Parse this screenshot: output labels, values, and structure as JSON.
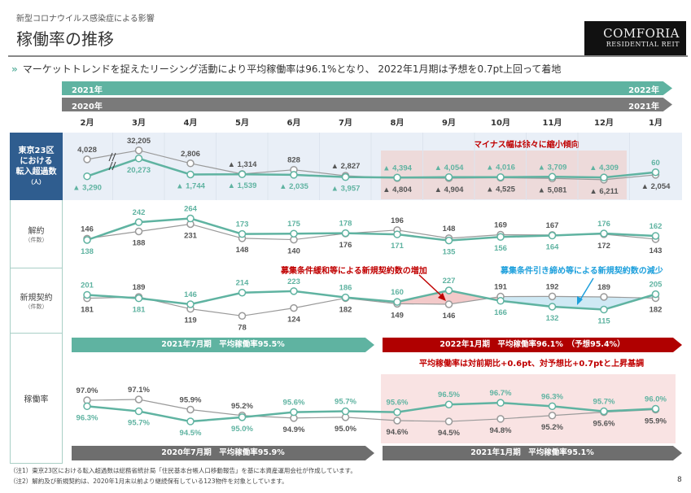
{
  "header": {
    "subtitle": "新型コロナウイルス感染症による影響",
    "title": "稼働率の推移",
    "logo_line1": "COMFORIA",
    "logo_line2": "RESIDENTIAL REIT",
    "lead": "マーケットトレンドを捉えたリーシング活動により平均稼働率は96.1%となり、 2022年1月期は予想を0.7pt上回って着地"
  },
  "timeline": {
    "current_start": "2021年",
    "current_end": "2022年",
    "prior_start": "2020年",
    "prior_end": "2021年",
    "months": [
      "2月",
      "3月",
      "4月",
      "5月",
      "6月",
      "7月",
      "8月",
      "9月",
      "10月",
      "11月",
      "12月",
      "1月"
    ]
  },
  "row_labels": {
    "tokyo": [
      "東京23区",
      "における",
      "転入超過数",
      "（人）"
    ],
    "cancel": [
      "解約",
      "（件数）"
    ],
    "new": [
      "新規契約",
      "（件数）"
    ],
    "rate": "稼働率"
  },
  "annotations": {
    "tokyo": "マイナス幅は徐々に縮小傾向",
    "new_up": "募集条件緩和等による新規契約数の増加",
    "new_down": "募集条件引き締め等による新規契約数の減少",
    "rate_note": "平均稼働率は対前期比+0.6pt、対予想比+0.7ptと上昇基調"
  },
  "banners": {
    "b1": "2021年7月期　平均稼働率95.5%",
    "b2": "2022年1月期　平均稼働率96.1%　（予想95.4%）",
    "b3": "2020年7月期　平均稼働率95.9%",
    "b4": "2021年1月期　平均稼働率95.1%"
  },
  "footnotes": [
    "（注1）東京23区における転入超過数は総務省統計局「住民基本台帳人口移動報告」を基に本資産運用会社が作成しています。",
    "（注2）解約及び新規契約は、2020年1月末以前より継続保有している123物件を対象としています。"
  ],
  "page_number": "8",
  "colors": {
    "current": "#5fb3a1",
    "prior": "#9a9a9a",
    "accent_red": "#c00000",
    "accent_blue": "#1ea0dc",
    "header_blue": "#2f5d8f"
  },
  "chart_data": [
    {
      "type": "line",
      "row": "tokyo",
      "note": "▲ = negative; axis break between 2月 and 3月",
      "categories": [
        "2月",
        "3月",
        "4月",
        "5月",
        "6月",
        "7月",
        "8月",
        "9月",
        "10月",
        "11月",
        "12月",
        "1月"
      ],
      "series": [
        {
          "name": "2021年",
          "values": [
            -3290,
            20273,
            -1744,
            -1539,
            -2035,
            -3957,
            -4394,
            -4054,
            -4016,
            -3709,
            -4309,
            60
          ]
        },
        {
          "name": "2020年",
          "values": [
            4028,
            32205,
            2806,
            -1314,
            828,
            -2827,
            -4804,
            -4904,
            -4525,
            -5081,
            -6211,
            -2054
          ]
        }
      ]
    },
    {
      "type": "line",
      "row": "cancel",
      "categories": [
        "2月",
        "3月",
        "4月",
        "5月",
        "6月",
        "7月",
        "8月",
        "9月",
        "10月",
        "11月",
        "12月",
        "1月"
      ],
      "series": [
        {
          "name": "2021年",
          "values": [
            138,
            242,
            264,
            173,
            175,
            178,
            171,
            135,
            156,
            164,
            176,
            162
          ]
        },
        {
          "name": "2020年",
          "values": [
            146,
            188,
            231,
            148,
            140,
            176,
            196,
            148,
            169,
            167,
            172,
            143
          ]
        }
      ]
    },
    {
      "type": "line",
      "row": "new",
      "categories": [
        "2月",
        "3月",
        "4月",
        "5月",
        "6月",
        "7月",
        "8月",
        "9月",
        "10月",
        "11月",
        "12月",
        "1月"
      ],
      "series": [
        {
          "name": "2021年",
          "values": [
            201,
            181,
            146,
            214,
            223,
            186,
            160,
            227,
            166,
            132,
            115,
            205
          ]
        },
        {
          "name": "2020年",
          "values": [
            181,
            189,
            119,
            78,
            124,
            182,
            149,
            146,
            191,
            192,
            189,
            182
          ]
        }
      ]
    },
    {
      "type": "line",
      "row": "rate",
      "unit": "%",
      "categories": [
        "2月",
        "3月",
        "4月",
        "5月",
        "6月",
        "7月",
        "8月",
        "9月",
        "10月",
        "11月",
        "12月",
        "1月"
      ],
      "series": [
        {
          "name": "2021年",
          "values": [
            96.3,
            95.7,
            94.5,
            95.0,
            95.6,
            95.7,
            95.6,
            96.5,
            96.7,
            96.3,
            95.7,
            96.0
          ]
        },
        {
          "name": "2020年",
          "values": [
            97.0,
            97.1,
            95.9,
            95.2,
            94.9,
            95.0,
            94.6,
            94.5,
            94.8,
            95.2,
            95.6,
            95.9
          ]
        }
      ]
    }
  ]
}
